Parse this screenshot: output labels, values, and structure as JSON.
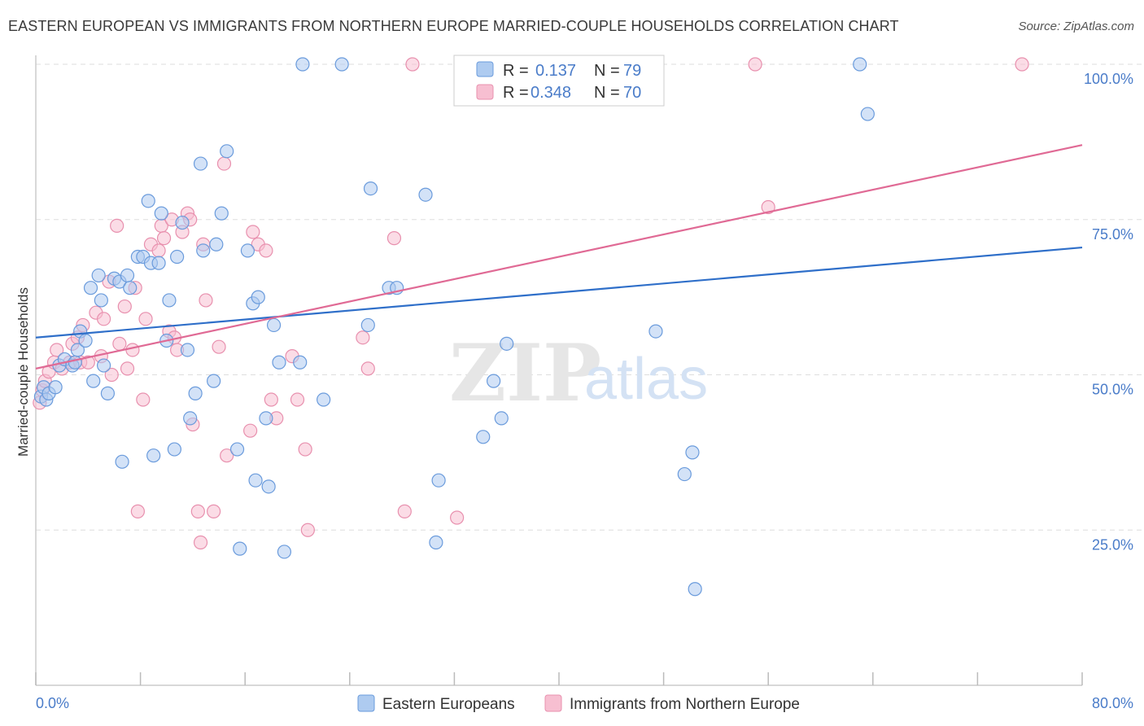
{
  "title": "EASTERN EUROPEAN VS IMMIGRANTS FROM NORTHERN EUROPE MARRIED-COUPLE HOUSEHOLDS CORRELATION CHART",
  "source": "Source: ZipAtlas.com",
  "watermark": {
    "zip": "ZIP",
    "atlas": "atlas"
  },
  "colors": {
    "blue_fill": "#aecbf0",
    "blue_stroke": "#6a9bdc",
    "blue_line": "#2f6fc9",
    "pink_fill": "#f7bfd1",
    "pink_stroke": "#e890ae",
    "pink_line": "#e06a95",
    "grid": "#dddddd",
    "tick_text": "#4a7cc9"
  },
  "legend": {
    "rows": [
      {
        "series": "Eastern Europeans",
        "r_label": "R =",
        "r_value": "0.137",
        "n_label": "N =",
        "n_value": "79"
      },
      {
        "series": "Immigrants from Northern Europe",
        "r_label": "R =",
        "r_value": "0.348",
        "n_label": "N =",
        "n_value": "70"
      }
    ]
  },
  "chart_data": {
    "type": "scatter",
    "title": "EASTERN EUROPEAN VS IMMIGRANTS FROM NORTHERN EUROPE MARRIED-COUPLE HOUSEHOLDS CORRELATION CHART",
    "xlabel": "",
    "ylabel": "Married-couple Households",
    "xlim": [
      0,
      80
    ],
    "ylim": [
      0,
      105
    ],
    "x_tick_labels": [
      "0.0%",
      "80.0%"
    ],
    "y_ticks": [
      25,
      50,
      75,
      100
    ],
    "y_tick_labels": [
      "25.0%",
      "50.0%",
      "75.0%",
      "100.0%"
    ],
    "grid": true,
    "legend_position": "top-center",
    "series": [
      {
        "name": "Eastern Europeans",
        "color": "#6a9bdc",
        "trend": {
          "x": [
            0,
            80
          ],
          "y": [
            56.0,
            70.5
          ]
        },
        "points": [
          [
            0.4,
            46.5
          ],
          [
            0.6,
            48
          ],
          [
            0.8,
            46
          ],
          [
            1.0,
            47
          ],
          [
            1.5,
            48
          ],
          [
            1.8,
            51.5
          ],
          [
            2.2,
            52.5
          ],
          [
            2.8,
            51.5
          ],
          [
            3.0,
            52
          ],
          [
            3.2,
            54
          ],
          [
            3.4,
            57
          ],
          [
            3.8,
            55.5
          ],
          [
            4.2,
            64
          ],
          [
            4.4,
            49
          ],
          [
            4.8,
            66
          ],
          [
            5.0,
            62
          ],
          [
            5.2,
            51.5
          ],
          [
            5.5,
            47
          ],
          [
            6.0,
            65.5
          ],
          [
            6.4,
            65
          ],
          [
            6.6,
            36
          ],
          [
            7.0,
            66
          ],
          [
            7.2,
            64
          ],
          [
            7.8,
            69
          ],
          [
            8.2,
            69
          ],
          [
            8.6,
            78
          ],
          [
            8.8,
            68
          ],
          [
            9.0,
            37
          ],
          [
            9.4,
            68
          ],
          [
            9.6,
            76
          ],
          [
            10.0,
            55.5
          ],
          [
            10.2,
            62
          ],
          [
            10.6,
            38
          ],
          [
            10.8,
            69
          ],
          [
            11.2,
            74.5
          ],
          [
            11.6,
            54
          ],
          [
            11.8,
            43
          ],
          [
            12.2,
            47
          ],
          [
            12.6,
            84
          ],
          [
            12.8,
            70
          ],
          [
            13.6,
            49
          ],
          [
            13.8,
            71
          ],
          [
            14.2,
            76
          ],
          [
            14.6,
            86
          ],
          [
            15.4,
            38
          ],
          [
            15.6,
            22
          ],
          [
            16.2,
            70
          ],
          [
            16.6,
            61.5
          ],
          [
            16.8,
            33
          ],
          [
            17.0,
            62.5
          ],
          [
            17.6,
            43
          ],
          [
            17.8,
            32
          ],
          [
            18.2,
            58
          ],
          [
            18.6,
            52
          ],
          [
            19.0,
            21.5
          ],
          [
            20.2,
            52
          ],
          [
            20.4,
            100
          ],
          [
            22.0,
            46
          ],
          [
            23.4,
            100
          ],
          [
            25.4,
            58
          ],
          [
            25.6,
            80
          ],
          [
            27.0,
            64
          ],
          [
            27.6,
            64
          ],
          [
            29.8,
            79
          ],
          [
            30.6,
            23
          ],
          [
            30.8,
            33
          ],
          [
            34.2,
            40
          ],
          [
            35.0,
            49
          ],
          [
            35.6,
            43
          ],
          [
            36.0,
            55
          ],
          [
            47.4,
            57
          ],
          [
            49.6,
            34
          ],
          [
            50.2,
            37.5
          ],
          [
            50.4,
            15.5
          ],
          [
            63.0,
            100
          ],
          [
            63.6,
            92
          ]
        ]
      },
      {
        "name": "Immigrants from Northern Europe",
        "color": "#e890ae",
        "trend": {
          "x": [
            0,
            80
          ],
          "y": [
            51.0,
            87.0
          ]
        },
        "points": [
          [
            0.3,
            45.5
          ],
          [
            0.5,
            47.5
          ],
          [
            0.7,
            49
          ],
          [
            1.0,
            50.5
          ],
          [
            1.4,
            52
          ],
          [
            1.6,
            54
          ],
          [
            2.0,
            51
          ],
          [
            2.6,
            52
          ],
          [
            2.8,
            55
          ],
          [
            3.2,
            56
          ],
          [
            3.4,
            52
          ],
          [
            3.6,
            58
          ],
          [
            4.0,
            52
          ],
          [
            4.6,
            60
          ],
          [
            5.0,
            53
          ],
          [
            5.2,
            59
          ],
          [
            5.6,
            65
          ],
          [
            5.8,
            50
          ],
          [
            6.2,
            74
          ],
          [
            6.4,
            55
          ],
          [
            6.8,
            61
          ],
          [
            7.0,
            51
          ],
          [
            7.4,
            54
          ],
          [
            7.6,
            64
          ],
          [
            7.8,
            28
          ],
          [
            8.2,
            46
          ],
          [
            8.4,
            59
          ],
          [
            8.8,
            71
          ],
          [
            9.4,
            70
          ],
          [
            9.6,
            74
          ],
          [
            9.8,
            72
          ],
          [
            10.2,
            57
          ],
          [
            10.4,
            75
          ],
          [
            10.6,
            56
          ],
          [
            10.8,
            54
          ],
          [
            11.2,
            73
          ],
          [
            11.6,
            76
          ],
          [
            11.8,
            75
          ],
          [
            12.0,
            42
          ],
          [
            12.4,
            28
          ],
          [
            12.6,
            23
          ],
          [
            12.8,
            71
          ],
          [
            13.0,
            62
          ],
          [
            13.6,
            28
          ],
          [
            14.0,
            54.5
          ],
          [
            14.4,
            84
          ],
          [
            14.6,
            37
          ],
          [
            16.4,
            41
          ],
          [
            16.6,
            73
          ],
          [
            17.0,
            71
          ],
          [
            17.6,
            70
          ],
          [
            18.0,
            46
          ],
          [
            18.4,
            43
          ],
          [
            19.6,
            53
          ],
          [
            20.0,
            46
          ],
          [
            20.6,
            38
          ],
          [
            20.8,
            25
          ],
          [
            25.0,
            56
          ],
          [
            25.4,
            51
          ],
          [
            27.4,
            72
          ],
          [
            28.2,
            28
          ],
          [
            32.2,
            27
          ],
          [
            28.8,
            100
          ],
          [
            55.0,
            100
          ],
          [
            56.0,
            77
          ],
          [
            75.4,
            100
          ]
        ]
      }
    ]
  }
}
